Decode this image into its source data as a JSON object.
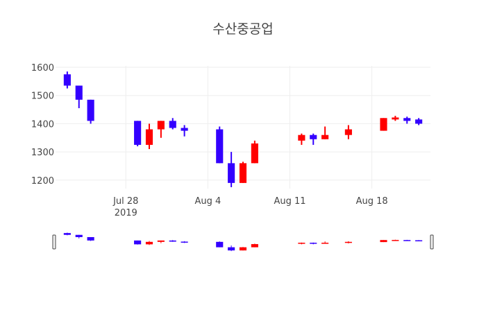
{
  "chart_data": {
    "type": "candlestick",
    "title": "수산중공업",
    "x_ticks": [
      "Jul 28",
      "Aug 4",
      "Aug 11",
      "Aug 18"
    ],
    "x_tick_year": "2019",
    "x_tick_dates": [
      "2019-07-28",
      "2019-08-04",
      "2019-08-11",
      "2019-08-18"
    ],
    "y_ticks": [
      "1200",
      "1300",
      "1400",
      "1500",
      "1600"
    ],
    "y_tick_values": [
      1200,
      1300,
      1400,
      1500,
      1600
    ],
    "ylim": [
      1170,
      1605
    ],
    "xlim": [
      "2019-07-22",
      "2019-08-23"
    ],
    "grid": true,
    "increasing_color": "#ff0000",
    "decreasing_color": "#3300ff",
    "range_slider": true,
    "candles": [
      {
        "date": "2019-07-23",
        "open": 1575,
        "high": 1585,
        "low": 1525,
        "close": 1535
      },
      {
        "date": "2019-07-24",
        "open": 1535,
        "high": 1535,
        "low": 1455,
        "close": 1485
      },
      {
        "date": "2019-07-25",
        "open": 1485,
        "high": 1485,
        "low": 1400,
        "close": 1410
      },
      {
        "date": "2019-07-29",
        "open": 1410,
        "high": 1410,
        "low": 1320,
        "close": 1325
      },
      {
        "date": "2019-07-30",
        "open": 1325,
        "high": 1400,
        "low": 1310,
        "close": 1380
      },
      {
        "date": "2019-07-31",
        "open": 1380,
        "high": 1410,
        "low": 1350,
        "close": 1410
      },
      {
        "date": "2019-08-01",
        "open": 1410,
        "high": 1420,
        "low": 1380,
        "close": 1385
      },
      {
        "date": "2019-08-02",
        "open": 1385,
        "high": 1395,
        "low": 1355,
        "close": 1375
      },
      {
        "date": "2019-08-05",
        "open": 1380,
        "high": 1390,
        "low": 1260,
        "close": 1260
      },
      {
        "date": "2019-08-06",
        "open": 1260,
        "high": 1300,
        "low": 1175,
        "close": 1190
      },
      {
        "date": "2019-08-07",
        "open": 1190,
        "high": 1265,
        "low": 1190,
        "close": 1260
      },
      {
        "date": "2019-08-08",
        "open": 1260,
        "high": 1340,
        "low": 1260,
        "close": 1330
      },
      {
        "date": "2019-08-12",
        "open": 1340,
        "high": 1365,
        "low": 1325,
        "close": 1360
      },
      {
        "date": "2019-08-13",
        "open": 1360,
        "high": 1365,
        "low": 1325,
        "close": 1345
      },
      {
        "date": "2019-08-14",
        "open": 1345,
        "high": 1390,
        "low": 1345,
        "close": 1360
      },
      {
        "date": "2019-08-16",
        "open": 1360,
        "high": 1395,
        "low": 1345,
        "close": 1380
      },
      {
        "date": "2019-08-19",
        "open": 1375,
        "high": 1420,
        "low": 1375,
        "close": 1420
      },
      {
        "date": "2019-08-20",
        "open": 1415,
        "high": 1428,
        "low": 1410,
        "close": 1422
      },
      {
        "date": "2019-08-21",
        "open": 1420,
        "high": 1425,
        "low": 1400,
        "close": 1410
      },
      {
        "date": "2019-08-22",
        "open": 1415,
        "high": 1420,
        "low": 1395,
        "close": 1400
      }
    ]
  }
}
